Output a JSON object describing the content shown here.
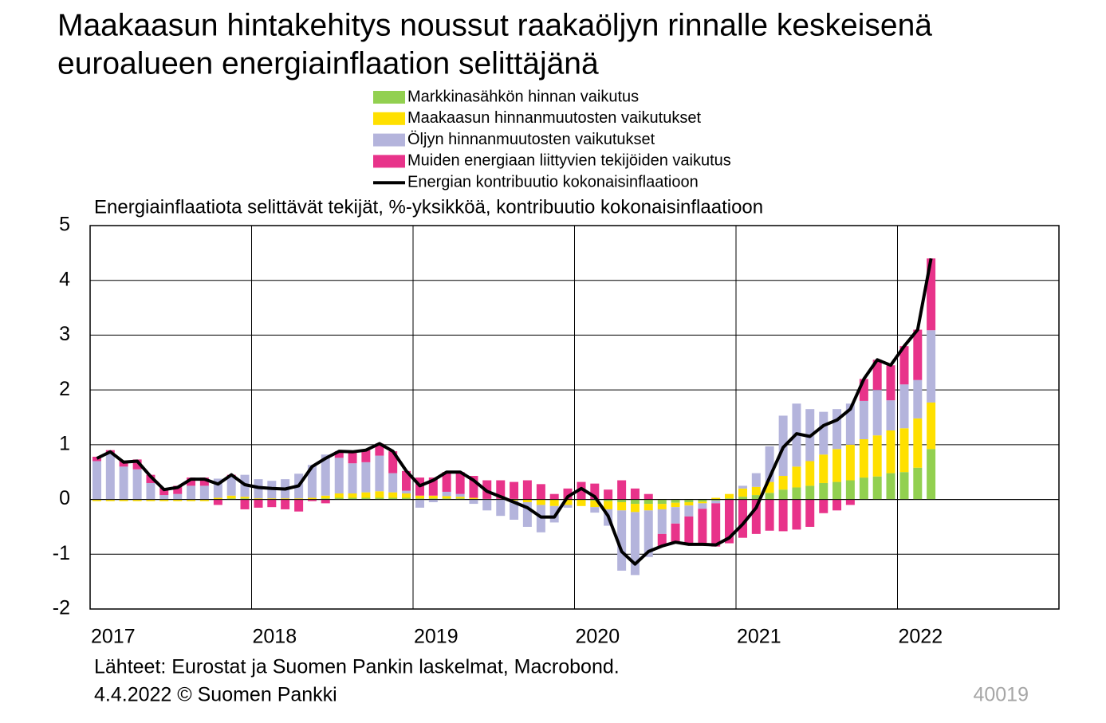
{
  "chart_data": {
    "type": "bar",
    "title": [
      "Maakaasun hintakehitys noussut raakaöljyn rinnalle keskeisenä",
      "euroalueen energiainflaation selittäjänä"
    ],
    "subtitle": "Energiainflaatiota selittävät tekijät, %-yksikköä, kontribuutio kokonaisinflaatioon",
    "source": "Lähteet: Eurostat ja Suomen Pankin laskelmat, Macrobond.",
    "date_note": "4.4.2022 © Suomen Pankki",
    "chart_id": "40019",
    "x": [
      2017.042,
      2017.125,
      2017.208,
      2017.292,
      2017.375,
      2017.458,
      2017.542,
      2017.625,
      2017.708,
      2017.792,
      2017.875,
      2017.958,
      2018.042,
      2018.125,
      2018.208,
      2018.292,
      2018.375,
      2018.458,
      2018.542,
      2018.625,
      2018.708,
      2018.792,
      2018.875,
      2018.958,
      2019.042,
      2019.125,
      2019.208,
      2019.292,
      2019.375,
      2019.458,
      2019.542,
      2019.625,
      2019.708,
      2019.792,
      2019.875,
      2019.958,
      2020.042,
      2020.125,
      2020.208,
      2020.292,
      2020.375,
      2020.458,
      2020.542,
      2020.625,
      2020.708,
      2020.792,
      2020.875,
      2020.958,
      2021.042,
      2021.125,
      2021.208,
      2021.292,
      2021.375,
      2021.458,
      2021.542,
      2021.625,
      2021.708,
      2021.792,
      2021.875,
      2021.958,
      2022.042,
      2022.125,
      2022.208
    ],
    "xlim": [
      2017,
      2023
    ],
    "xticks": [
      2017,
      2018,
      2019,
      2020,
      2021,
      2022
    ],
    "ylim": [
      -2,
      5
    ],
    "yticks": [
      -2,
      -1,
      0,
      1,
      2,
      3,
      4,
      5
    ],
    "grid": true,
    "series": [
      {
        "name": "Markkinasähkön hinnan vaikutus",
        "color": "#92d050",
        "values": [
          0,
          0,
          0,
          0,
          0,
          0,
          0,
          0,
          0,
          0,
          0.02,
          0.02,
          0,
          0,
          0,
          0,
          0,
          0.02,
          0.03,
          0.03,
          0.03,
          0.03,
          0.03,
          0.03,
          0.02,
          0.02,
          0.02,
          0.02,
          0.01,
          0.01,
          0.01,
          0.01,
          0,
          0,
          0,
          0,
          0,
          -0.02,
          -0.03,
          -0.05,
          -0.08,
          -0.08,
          -0.08,
          -0.06,
          -0.05,
          -0.04,
          -0.02,
          0.02,
          0.05,
          0.08,
          0.12,
          0.18,
          0.22,
          0.25,
          0.3,
          0.32,
          0.35,
          0.4,
          0.42,
          0.48,
          0.5,
          0.58,
          0.92
        ]
      },
      {
        "name": "Maakaasun hinnanmuutosten vaikutukset",
        "color": "#ffe000",
        "values": [
          -0.03,
          -0.03,
          -0.03,
          -0.03,
          -0.03,
          -0.03,
          -0.03,
          -0.03,
          -0.03,
          0.03,
          0.05,
          0.03,
          0.02,
          0.02,
          0.02,
          0.02,
          0.03,
          0.05,
          0.08,
          0.08,
          0.1,
          0.12,
          0.1,
          0.08,
          0.05,
          0.05,
          0.04,
          0.03,
          0.02,
          0,
          0,
          -0.02,
          -0.05,
          -0.1,
          -0.12,
          -0.1,
          -0.12,
          -0.12,
          -0.15,
          -0.15,
          -0.15,
          -0.12,
          -0.1,
          -0.08,
          -0.06,
          -0.03,
          0.03,
          0.08,
          0.15,
          0.15,
          0.2,
          0.25,
          0.38,
          0.45,
          0.52,
          0.6,
          0.65,
          0.7,
          0.75,
          0.78,
          0.8,
          0.9,
          0.85
        ]
      },
      {
        "name": "Öljyn hinnanmuutosten vaikutukset",
        "color": "#b4b4dc",
        "values": [
          0.7,
          0.85,
          0.6,
          0.55,
          0.3,
          0.08,
          0.1,
          0.25,
          0.25,
          0.35,
          0.35,
          0.4,
          0.35,
          0.32,
          0.35,
          0.45,
          0.6,
          0.75,
          0.65,
          0.55,
          0.55,
          0.65,
          0.35,
          0.05,
          -0.15,
          -0.05,
          0.08,
          0.05,
          -0.08,
          -0.2,
          -0.3,
          -0.35,
          -0.45,
          -0.5,
          -0.3,
          -0.05,
          0,
          -0.1,
          -0.3,
          -1.1,
          -1.15,
          -0.85,
          -0.45,
          -0.3,
          -0.2,
          -0.1,
          -0.05,
          0,
          0.05,
          0.25,
          0.65,
          1.1,
          1.15,
          0.95,
          0.78,
          0.73,
          0.75,
          0.7,
          0.83,
          0.55,
          0.8,
          0.7,
          1.32
        ]
      },
      {
        "name": "Muiden energiaan liittyvien tekijöiden vaikutus",
        "color": "#e8338a",
        "values": [
          0.08,
          0.05,
          0.11,
          0.18,
          0.15,
          0.13,
          0.15,
          0.15,
          0.15,
          -0.1,
          0.03,
          -0.18,
          -0.15,
          -0.14,
          -0.18,
          -0.22,
          -0.03,
          -0.07,
          0.12,
          0.21,
          0.22,
          0.22,
          0.4,
          0.36,
          0.33,
          0.33,
          0.36,
          0.4,
          0.4,
          0.34,
          0.34,
          0.31,
          0.35,
          0.28,
          0.1,
          0.2,
          0.32,
          0.29,
          0.18,
          0.35,
          0.2,
          0.1,
          -0.22,
          -0.34,
          -0.51,
          -0.65,
          -0.79,
          -0.8,
          -0.7,
          -0.63,
          -0.57,
          -0.58,
          -0.55,
          -0.5,
          -0.25,
          -0.2,
          -0.1,
          0.4,
          0.55,
          0.64,
          0.7,
          0.92,
          1.31
        ]
      },
      {
        "name": "Energian kontribuutio kokonaisinflaatioon",
        "type": "line",
        "color": "#000000",
        "values": [
          0.75,
          0.87,
          0.68,
          0.7,
          0.42,
          0.18,
          0.22,
          0.37,
          0.37,
          0.28,
          0.45,
          0.27,
          0.22,
          0.2,
          0.19,
          0.25,
          0.6,
          0.75,
          0.88,
          0.87,
          0.9,
          1.02,
          0.88,
          0.52,
          0.25,
          0.35,
          0.5,
          0.5,
          0.35,
          0.15,
          0.05,
          -0.05,
          -0.15,
          -0.32,
          -0.32,
          0.05,
          0.2,
          0.05,
          -0.3,
          -0.95,
          -1.18,
          -0.95,
          -0.85,
          -0.78,
          -0.82,
          -0.82,
          -0.83,
          -0.7,
          -0.45,
          -0.15,
          0.4,
          0.95,
          1.2,
          1.15,
          1.35,
          1.45,
          1.65,
          2.2,
          2.55,
          2.45,
          2.8,
          3.1,
          4.4
        ]
      }
    ]
  }
}
